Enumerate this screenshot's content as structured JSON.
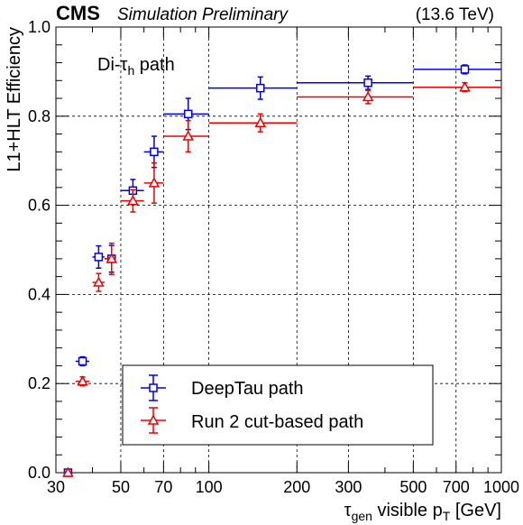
{
  "header": {
    "experiment": "CMS",
    "status": "Simulation Preliminary",
    "energy": "(13.6 TeV)"
  },
  "chart_data": {
    "type": "scatter",
    "annotation": {
      "prefix": "Di-τ",
      "sub": "h",
      "suffix": " path"
    },
    "xlabel": {
      "p1": "τ",
      "p1sub": "gen",
      "p2": " visible p",
      "p2sub": "T",
      "p3": " [GeV]"
    },
    "ylabel": "L1+HLT Efficiency",
    "xscale": "log",
    "xlim": [
      30,
      1000
    ],
    "ylim": [
      0,
      1
    ],
    "grid": true,
    "x_ticks": [
      30,
      50,
      70,
      100,
      200,
      300,
      500,
      700,
      1000
    ],
    "x_tick_labels": [
      "30",
      "50",
      "70",
      "100",
      "200",
      "300",
      "500",
      "700",
      "1000"
    ],
    "y_ticks": [
      0,
      0.2,
      0.4,
      0.6,
      0.8,
      1.0
    ],
    "y_tick_labels": [
      "0.0",
      "0.2",
      "0.4",
      "0.6",
      "0.8",
      "1.0"
    ],
    "legend_position": "bottom-center",
    "series": [
      {
        "name": "DeepTau path",
        "color": "#0000ee",
        "marker": "open-square",
        "points": [
          {
            "x": 33,
            "xlo": 32,
            "xhi": 34,
            "y": 0.0,
            "yerr": 0.003
          },
          {
            "x": 37,
            "xlo": 35,
            "xhi": 39,
            "y": 0.25,
            "yerr": 0.01
          },
          {
            "x": 42,
            "xlo": 40,
            "xhi": 44,
            "y": 0.484,
            "yerr": 0.025
          },
          {
            "x": 46.5,
            "xlo": 44,
            "xhi": 48,
            "y": 0.48,
            "yerr": 0.03
          },
          {
            "x": 55,
            "xlo": 50,
            "xhi": 60,
            "y": 0.633,
            "yerr": 0.025
          },
          {
            "x": 65,
            "xlo": 60,
            "xhi": 70,
            "y": 0.72,
            "yerr": 0.035
          },
          {
            "x": 85,
            "xlo": 70,
            "xhi": 100,
            "y": 0.805,
            "yerr": 0.035
          },
          {
            "x": 150,
            "xlo": 100,
            "xhi": 200,
            "y": 0.863,
            "yerr": 0.025
          },
          {
            "x": 350,
            "xlo": 200,
            "xhi": 500,
            "y": 0.875,
            "yerr": 0.015
          },
          {
            "x": 750,
            "xlo": 500,
            "xhi": 1000,
            "y": 0.905,
            "yerr": 0.01
          }
        ]
      },
      {
        "name": "Run 2 cut-based path",
        "color": "#ee0000",
        "marker": "open-triangle",
        "points": [
          {
            "x": 33,
            "xlo": 32,
            "xhi": 34,
            "y": 0.0,
            "yerr": 0.003
          },
          {
            "x": 37,
            "xlo": 35,
            "xhi": 39,
            "y": 0.205,
            "yerr": 0.01
          },
          {
            "x": 42,
            "xlo": 40,
            "xhi": 44,
            "y": 0.427,
            "yerr": 0.02
          },
          {
            "x": 46.5,
            "xlo": 44,
            "xhi": 48,
            "y": 0.48,
            "yerr": 0.035
          },
          {
            "x": 55,
            "xlo": 50,
            "xhi": 60,
            "y": 0.61,
            "yerr": 0.025
          },
          {
            "x": 65,
            "xlo": 60,
            "xhi": 70,
            "y": 0.65,
            "yerr": 0.045
          },
          {
            "x": 85,
            "xlo": 70,
            "xhi": 100,
            "y": 0.755,
            "yerr": 0.035
          },
          {
            "x": 150,
            "xlo": 100,
            "xhi": 200,
            "y": 0.785,
            "yerr": 0.02
          },
          {
            "x": 350,
            "xlo": 200,
            "xhi": 500,
            "y": 0.843,
            "yerr": 0.015
          },
          {
            "x": 750,
            "xlo": 500,
            "xhi": 1000,
            "y": 0.865,
            "yerr": 0.01
          }
        ]
      }
    ]
  }
}
